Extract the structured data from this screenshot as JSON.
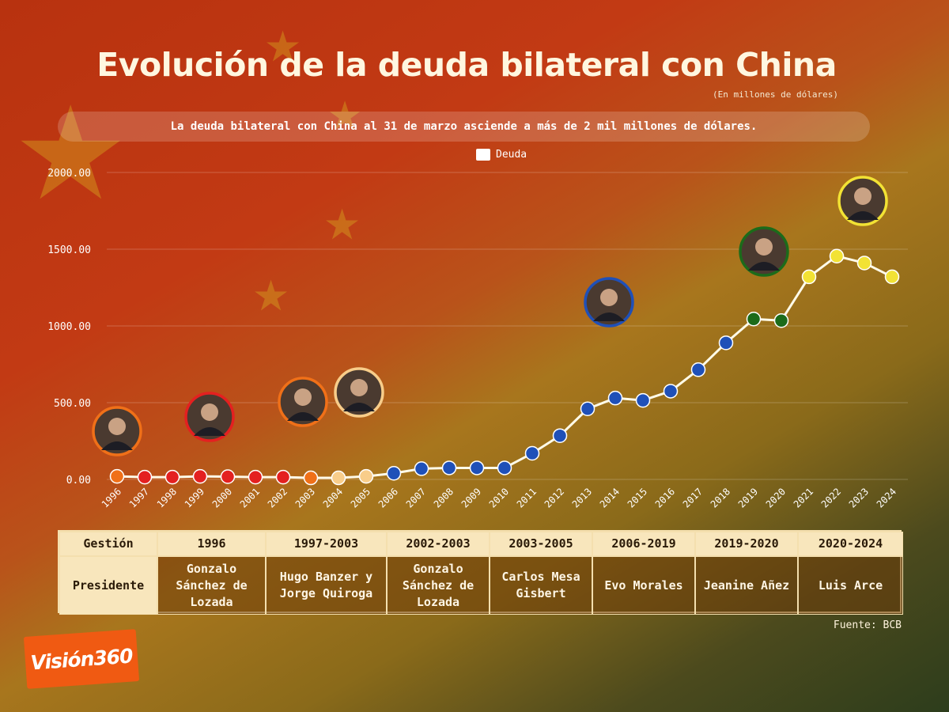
{
  "title": "Evolución de la deuda bilateral con China",
  "units_note": "(En millones de dólares)",
  "banner": "La deuda bilateral con China al 31 de marzo asciende a más de 2 mil millones de dólares.",
  "source": "Fuente: BCB",
  "logo": "Visión360",
  "chart_data": {
    "type": "line",
    "x": [
      "1996",
      "1997",
      "1998",
      "1999",
      "2000",
      "2001",
      "2002",
      "2003",
      "2004",
      "2005",
      "2006",
      "2007",
      "2008",
      "2009",
      "2010",
      "2011",
      "2012",
      "2013",
      "2014",
      "2015",
      "2016",
      "2017",
      "2018",
      "2019",
      "2020",
      "2021",
      "2022",
      "2023",
      "2024"
    ],
    "series": [
      {
        "name": "Deuda",
        "values": [
          20,
          15,
          15,
          20,
          18,
          15,
          15,
          10,
          10,
          20,
          40,
          70,
          75,
          75,
          75,
          170,
          285,
          460,
          530,
          515,
          575,
          715,
          890,
          1045,
          1035,
          1320,
          1455,
          1410,
          1320
        ],
        "point_colors": [
          "#f07018",
          "#e42020",
          "#e42020",
          "#e42020",
          "#e42020",
          "#e42020",
          "#e42020",
          "#f07018",
          "#f8cd8a",
          "#f8cd8a",
          "#1f50b8",
          "#1f50b8",
          "#1f50b8",
          "#1f50b8",
          "#1f50b8",
          "#1f50b8",
          "#1f50b8",
          "#1f50b8",
          "#1f50b8",
          "#1f50b8",
          "#1f50b8",
          "#1f50b8",
          "#1f50b8",
          "#1c6b1a",
          "#1c6b1a",
          "#f2e234",
          "#f2e234",
          "#f2e234",
          "#f2e234"
        ]
      }
    ],
    "ylim": [
      0,
      2000
    ],
    "yticks": [
      "0.00",
      "500.00",
      "1000.00",
      "1500.00",
      "2000.00"
    ],
    "ytick_values": [
      0,
      500,
      1000,
      1500,
      2000
    ],
    "legend": "top-center",
    "grid": true
  },
  "portraits": [
    {
      "year_index": 0,
      "ring": "#f07018"
    },
    {
      "year_index": 3,
      "ring": "#e42020"
    },
    {
      "year_index": 7,
      "ring": "#f07018"
    },
    {
      "year_index": 9,
      "ring": "#f8cd8a"
    },
    {
      "year_index": 18,
      "ring": "#1f50b8"
    },
    {
      "year_index": 24,
      "ring": "#1c6b1a"
    },
    {
      "year_index": 27,
      "ring": "#f2e234"
    }
  ],
  "table": {
    "header_label": "Gestión",
    "row_label": "Presidente",
    "columns": [
      {
        "period": "1996",
        "president": "Gonzalo Sánchez de Lozada"
      },
      {
        "period": "1997-2003",
        "president": "Hugo Banzer y Jorge Quiroga"
      },
      {
        "period": "2002-2003",
        "president": "Gonzalo Sánchez de Lozada"
      },
      {
        "period": "2003-2005",
        "president": "Carlos Mesa Gisbert"
      },
      {
        "period": "2006-2019",
        "president": "Evo Morales"
      },
      {
        "period": "2019-2020",
        "president": "Jeanine Añez"
      },
      {
        "period": "2020-2024",
        "president": "Luis Arce"
      }
    ]
  }
}
